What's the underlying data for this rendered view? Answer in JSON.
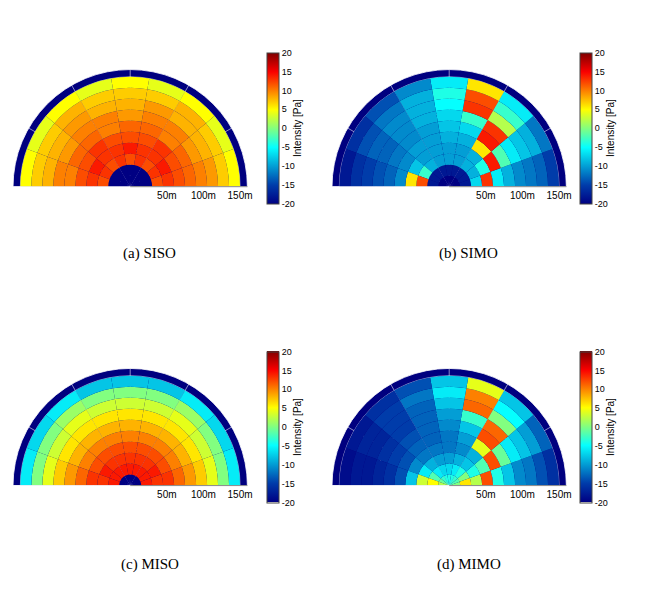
{
  "chart_data": [
    {
      "type": "heatmap",
      "title": "(a) SISO",
      "r_bins": [
        0,
        15,
        30,
        45,
        60,
        75,
        90,
        105,
        120,
        135,
        150
      ],
      "theta_bins": [
        0,
        20,
        40,
        60,
        80,
        100,
        120,
        140,
        160,
        180
      ],
      "cells": [
        [
          -20,
          -20,
          -20,
          -20,
          -20,
          -20,
          -20,
          -20,
          -20
        ],
        [
          -20,
          -20,
          -20,
          -20,
          -20,
          -20,
          -20,
          -20,
          -20
        ],
        [
          12,
          13,
          12,
          13,
          12,
          13,
          12,
          13,
          12
        ],
        [
          13,
          14,
          13,
          13,
          14,
          13,
          13,
          14,
          13
        ],
        [
          12,
          12,
          13,
          12,
          12,
          12,
          13,
          12,
          12
        ],
        [
          11,
          11,
          10,
          11,
          11,
          10,
          11,
          11,
          10
        ],
        [
          10,
          9,
          10,
          10,
          9,
          10,
          10,
          9,
          10
        ],
        [
          9,
          8,
          8,
          9,
          8,
          8,
          9,
          8,
          8
        ],
        [
          7,
          7,
          8,
          7,
          7,
          7,
          8,
          7,
          7
        ],
        [
          5,
          4,
          5,
          4,
          5,
          4,
          5,
          4,
          5
        ]
      ],
      "rlim": [
        0,
        160
      ],
      "rticks": [
        {
          "value": 50,
          "label": "50m"
        },
        {
          "value": 100,
          "label": "100m"
        },
        {
          "value": 150,
          "label": "150m"
        }
      ],
      "colorbar": {
        "title": "Intensity [Pa]",
        "range": [
          -20,
          20
        ],
        "ticks": [
          -20,
          -15,
          -10,
          -5,
          0,
          5,
          10,
          15,
          20
        ]
      }
    },
    {
      "type": "heatmap",
      "title": "(b) SIMO",
      "r_bins": [
        0,
        15,
        30,
        45,
        60,
        75,
        90,
        105,
        120,
        135,
        150
      ],
      "theta_bins": [
        0,
        20,
        40,
        60,
        80,
        100,
        120,
        140,
        160,
        180
      ],
      "cells": [
        [
          -20,
          -20,
          -20,
          -20,
          -20,
          -20,
          -20,
          -20,
          -20
        ],
        [
          -18,
          -18,
          -18,
          -18,
          -18,
          -18,
          -18,
          -18,
          -18
        ],
        [
          -7,
          -9,
          -9,
          -10,
          -10,
          -10,
          -9,
          -3,
          12
        ],
        [
          13,
          -4,
          -9,
          -10,
          -10,
          -10,
          -10,
          -8,
          6
        ],
        [
          -6,
          14,
          6,
          -9,
          -9,
          -10,
          -10,
          -11,
          -11
        ],
        [
          -9,
          -2,
          14,
          -7,
          -8,
          -10,
          -11,
          -12,
          -13
        ],
        [
          -11,
          -6,
          13,
          -3,
          -7,
          -9,
          -11,
          -13,
          -14
        ],
        [
          -12,
          -8,
          2,
          13,
          -5,
          -9,
          -11,
          -13,
          -15
        ],
        [
          -13,
          -9,
          -3,
          12,
          -4,
          -9,
          -12,
          -14,
          -16
        ],
        [
          -15,
          -12,
          -6,
          6,
          -6,
          -11,
          -14,
          -16,
          -18
        ]
      ],
      "rlim": [
        0,
        160
      ],
      "rticks": [
        {
          "value": 50,
          "label": "50m"
        },
        {
          "value": 100,
          "label": "100m"
        },
        {
          "value": 150,
          "label": "150m"
        }
      ],
      "colorbar": {
        "title": "Intensity [Pa]",
        "range": [
          -20,
          20
        ],
        "ticks": [
          -20,
          -15,
          -10,
          -5,
          0,
          5,
          10,
          15,
          20
        ]
      }
    },
    {
      "type": "heatmap",
      "title": "(c) MISO",
      "r_bins": [
        0,
        15,
        30,
        45,
        60,
        75,
        90,
        105,
        120,
        135,
        150
      ],
      "theta_bins": [
        0,
        20,
        40,
        60,
        80,
        100,
        120,
        140,
        160,
        180
      ],
      "cells": [
        [
          -20,
          -20,
          -20,
          -20,
          -20,
          -20,
          -20,
          -20,
          -20
        ],
        [
          14,
          14,
          14,
          14,
          14,
          14,
          14,
          14,
          14
        ],
        [
          13,
          14,
          13,
          13,
          13,
          13,
          13,
          14,
          13
        ],
        [
          13,
          12,
          12,
          12,
          12,
          12,
          12,
          12,
          13
        ],
        [
          11,
          10,
          10,
          10,
          10,
          10,
          10,
          10,
          11
        ],
        [
          9,
          8,
          8,
          8,
          8,
          8,
          8,
          8,
          9
        ],
        [
          7,
          6,
          6,
          6,
          6,
          6,
          6,
          6,
          7
        ],
        [
          4,
          3,
          4,
          3,
          3,
          3,
          4,
          3,
          4
        ],
        [
          0,
          0,
          1,
          0,
          0,
          0,
          1,
          0,
          0
        ],
        [
          -6,
          -7,
          -6,
          -8,
          -8,
          -8,
          -6,
          -7,
          -6
        ]
      ],
      "rlim": [
        0,
        160
      ],
      "rticks": [
        {
          "value": 50,
          "label": "50m"
        },
        {
          "value": 100,
          "label": "100m"
        },
        {
          "value": 150,
          "label": "150m"
        }
      ],
      "colorbar": {
        "title": "Intensity [Pa]",
        "range": [
          -20,
          20
        ],
        "ticks": [
          -20,
          -15,
          -10,
          -5,
          0,
          5,
          10,
          15,
          20
        ]
      }
    },
    {
      "type": "heatmap",
      "title": "(d) MIMO",
      "r_bins": [
        0,
        15,
        30,
        45,
        60,
        75,
        90,
        105,
        120,
        135,
        150
      ],
      "theta_bins": [
        0,
        20,
        40,
        60,
        80,
        100,
        120,
        140,
        160,
        180
      ],
      "cells": [
        [
          0,
          -2,
          -3,
          -4,
          -4,
          -4,
          -3,
          -1,
          2
        ],
        [
          6,
          0,
          -4,
          -6,
          -7,
          -7,
          -6,
          -2,
          5
        ],
        [
          2,
          -4,
          -8,
          -9,
          -10,
          -10,
          -9,
          -6,
          3
        ],
        [
          12,
          -2,
          -9,
          -11,
          -12,
          -12,
          -12,
          -11,
          -8
        ],
        [
          -4,
          12,
          4,
          -10,
          -12,
          -13,
          -13,
          -14,
          -14
        ],
        [
          -8,
          -1,
          12,
          -8,
          -11,
          -13,
          -14,
          -15,
          -16
        ],
        [
          -11,
          -6,
          11,
          -3,
          -10,
          -13,
          -15,
          -16,
          -17
        ],
        [
          -12,
          -8,
          0,
          11,
          -8,
          -13,
          -15,
          -17,
          -18
        ],
        [
          -14,
          -10,
          -5,
          10,
          -6,
          -12,
          -15,
          -17,
          -18
        ],
        [
          -16,
          -13,
          -8,
          4,
          -8,
          -14,
          -16,
          -18,
          -19
        ]
      ],
      "rlim": [
        0,
        160
      ],
      "rticks": [
        {
          "value": 50,
          "label": "50m"
        },
        {
          "value": 100,
          "label": "100m"
        },
        {
          "value": 150,
          "label": "150m"
        }
      ],
      "colorbar": {
        "title": "Intensity [Pa]",
        "range": [
          -20,
          20
        ],
        "ticks": [
          -20,
          -15,
          -10,
          -5,
          0,
          5,
          10,
          15,
          20
        ]
      }
    }
  ]
}
